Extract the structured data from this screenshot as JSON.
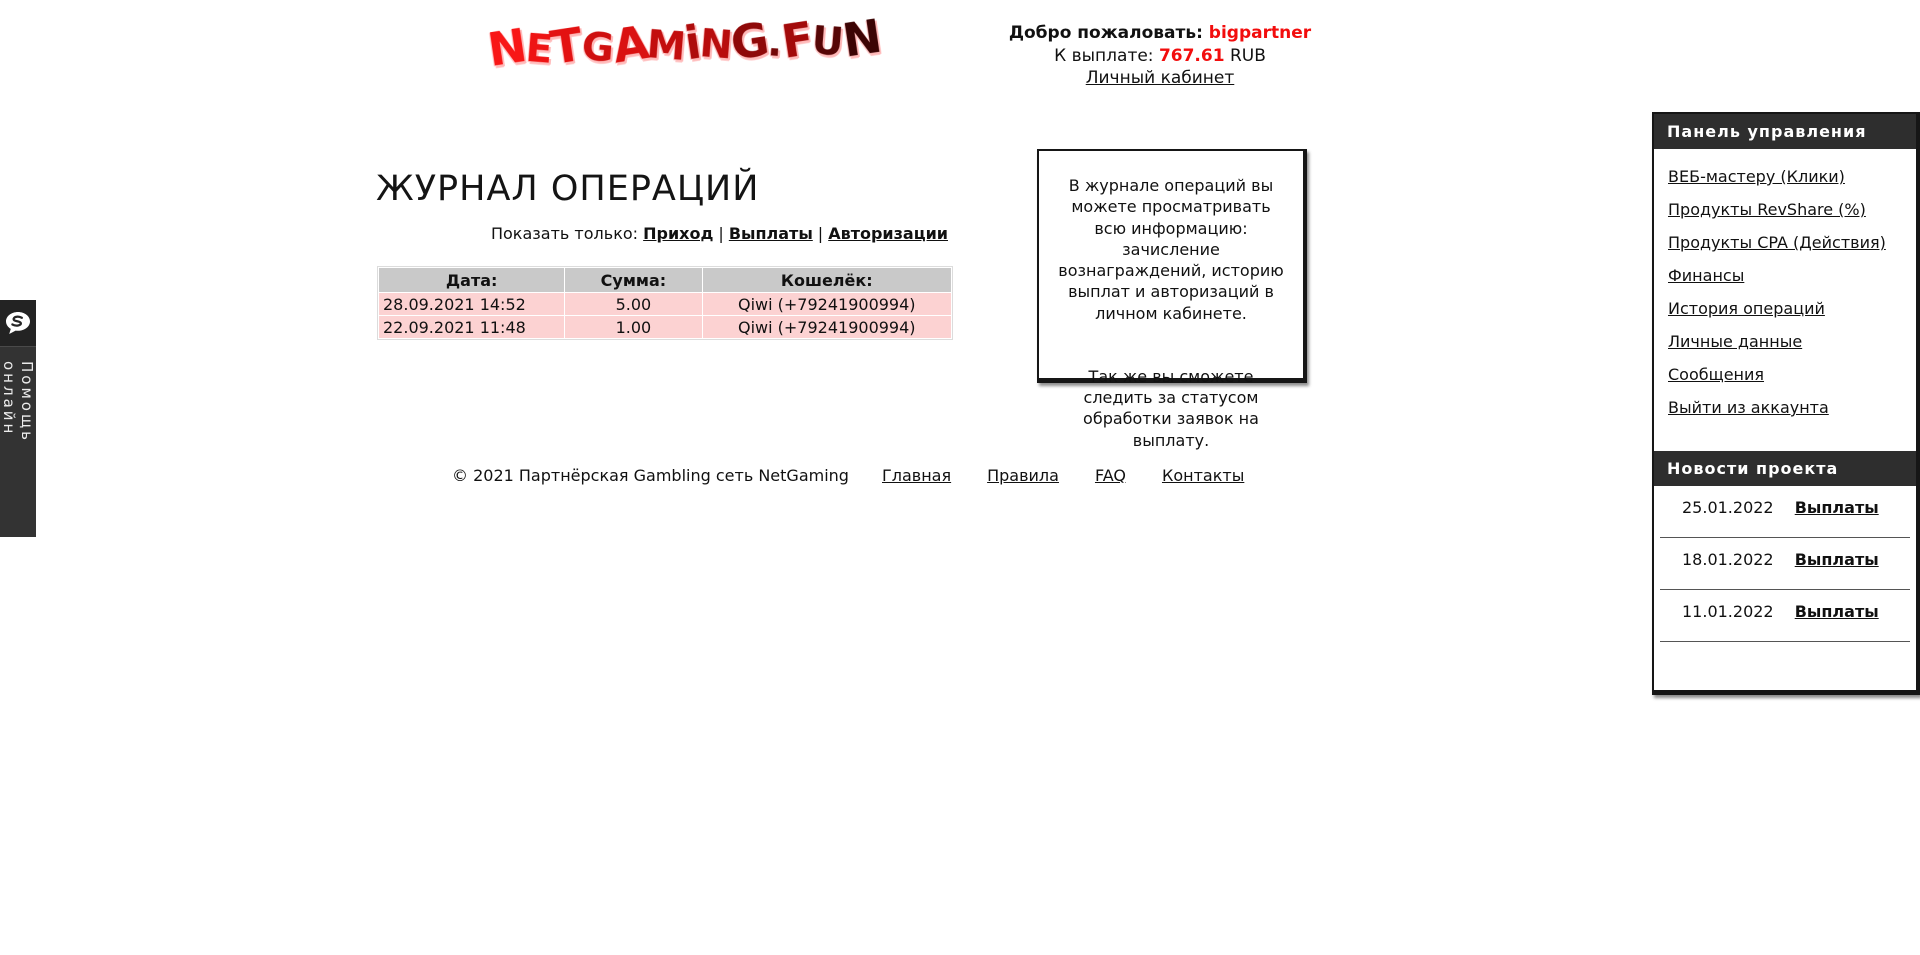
{
  "header": {
    "logo": {
      "text": "NetGaming.Fun",
      "letters": [
        {
          "ch": "N",
          "color": "#f81717"
        },
        {
          "ch": "E",
          "color": "#ee1414"
        },
        {
          "ch": "T",
          "color": "#e31212"
        },
        {
          "ch": "G",
          "color": "#cf1010"
        },
        {
          "ch": "A",
          "color": "#da1111"
        },
        {
          "ch": "M",
          "color": "#c30e0e"
        },
        {
          "ch": "i",
          "color": "#ae0c0c"
        },
        {
          "ch": "N",
          "color": "#b80d0d"
        },
        {
          "ch": "G",
          "color": "#8f0909"
        },
        {
          "ch": ".",
          "color": "#740707"
        },
        {
          "ch": "F",
          "color": "#a30a0a"
        },
        {
          "ch": "U",
          "color": "#570606"
        },
        {
          "ch": "N",
          "color": "#3c0404"
        }
      ]
    },
    "welcome_label": "Добро пожаловать:",
    "username": "bigpartner",
    "payout_label": "К выплате:",
    "payout_amount": "767.61",
    "payout_currency": "RUB",
    "cabinet_link": "Личный кабинет"
  },
  "help_tab": {
    "label": "Помощь онлайн",
    "icon": "chat-bubble-icon"
  },
  "main": {
    "title": "ЖУРНАЛ ОПЕРАЦИЙ",
    "filter": {
      "label": "Показать только:",
      "links": [
        "Приход",
        "Выплаты",
        "Авторизации"
      ],
      "separator": "|"
    },
    "table": {
      "headers": [
        "Дата:",
        "Сумма:",
        "Кошелёк:"
      ],
      "rows": [
        [
          "28.09.2021 14:52",
          "5.00",
          "Qiwi (+79241900994)"
        ],
        [
          "22.09.2021 11:48",
          "1.00",
          "Qiwi (+79241900994)"
        ]
      ]
    },
    "info_box": {
      "paragraph1": "В журнале операций вы можете просматривать всю информацию: зачисление вознаграждений, историю выплат и авторизаций в личном кабинете.",
      "paragraph2": "Так же вы сможете следить за статусом обработки заявок на выплату."
    }
  },
  "footer": {
    "copyright": "© 2021 Партнёрская Gambling сеть NetGaming",
    "links": [
      "Главная",
      "Правила",
      "FAQ",
      "Контакты"
    ]
  },
  "sidebar": {
    "panel": {
      "title": "Панель управления",
      "links": [
        "ВЕБ-мастеру (Клики)",
        "Продукты RevShare (%)",
        "Продукты CPA (Действия)",
        "Финансы",
        "История операций",
        "Личные данные",
        "Сообщения",
        "Выйти из аккаунта"
      ]
    },
    "news": {
      "title": "Новости проекта",
      "items": [
        {
          "date": "25.01.2022",
          "link_label": "Выплаты"
        },
        {
          "date": "18.01.2022",
          "link_label": "Выплаты"
        },
        {
          "date": "11.01.2022",
          "link_label": "Выплаты"
        }
      ]
    }
  },
  "colors": {
    "accent_red": "#f20d0d",
    "table_header_bg": "#c9c9c9",
    "table_row_bg": "#fcd2d2",
    "panel_dark": "#2e2e2e",
    "tab_dark": "#333333"
  }
}
